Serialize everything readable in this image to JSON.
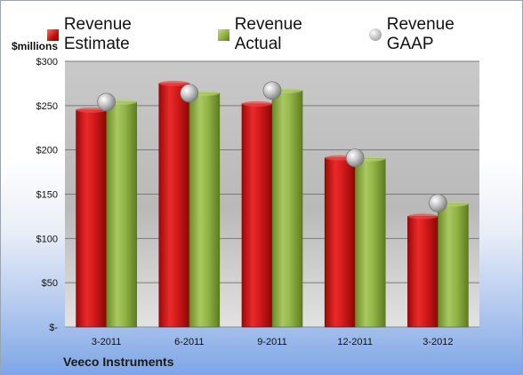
{
  "chart_data": {
    "type": "bar",
    "categories": [
      "3-2011",
      "6-2011",
      "9-2011",
      "12-2011",
      "3-2012"
    ],
    "series": [
      {
        "name": "Revenue Estimate",
        "values": [
          245,
          275,
          252,
          191,
          125
        ],
        "color": "#c8161d"
      },
      {
        "name": "Revenue Actual",
        "values": [
          254,
          264,
          267,
          190,
          139
        ],
        "color": "#8aad3a"
      }
    ],
    "markers": {
      "name": "Revenue GAAP",
      "values": [
        254,
        264,
        267,
        191,
        140
      ],
      "color": "#b0b0b0"
    },
    "ylabel": "$millions",
    "ylim": [
      0,
      300
    ],
    "yticks": [
      {
        "value": 0,
        "label": "$-"
      },
      {
        "value": 50,
        "label": "$50"
      },
      {
        "value": 100,
        "label": "$100"
      },
      {
        "value": 150,
        "label": "$150"
      },
      {
        "value": 200,
        "label": "$200"
      },
      {
        "value": 250,
        "label": "$250"
      },
      {
        "value": 300,
        "label": "$300"
      }
    ],
    "grid": true,
    "legend_position": "top"
  },
  "footer": {
    "company": "Veeco Instruments"
  }
}
